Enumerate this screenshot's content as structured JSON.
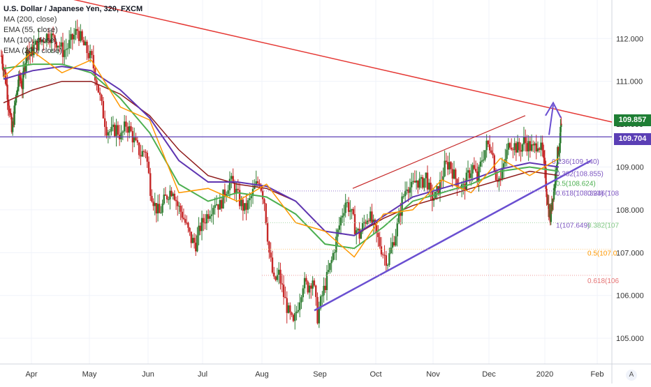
{
  "chart_data": {
    "type": "candlestick",
    "title": "U.S. Dollar / Japanese Yen, 320, FXCM",
    "indicators": [
      {
        "name": "MA (200, close)",
        "color": "#7b1fa2"
      },
      {
        "name": "EMA (55, close)",
        "color": "#4caf50"
      },
      {
        "name": "MA (100, close)",
        "color": "#5e35b1"
      },
      {
        "name": "EMA (200, close)",
        "color": "#8e1a1a"
      }
    ],
    "legend_rows": [
      "MA (200, close)",
      "EMA (55, close)",
      "MA (100, close)",
      "EMA (200, close)"
    ],
    "x_ticks": [
      "Apr",
      "May",
      "Jun",
      "Jul",
      "Aug",
      "Sep",
      "Oct",
      "Nov",
      "Dec",
      "2020",
      "Feb"
    ],
    "y_ticks": [
      "112.000",
      "111.000",
      "110.000",
      "109.000",
      "108.000",
      "107.000",
      "106.000",
      "105.000"
    ],
    "ylim": [
      104.4,
      112.9
    ],
    "current_price": "109.857",
    "horizontal_level": "109.704",
    "fib_labels": [
      {
        "text": "0.236(109.140)",
        "price": 109.14,
        "color": "#7e57c2"
      },
      {
        "text": "0.382(108.855)",
        "price": 108.855,
        "color": "#7e57c2"
      },
      {
        "text": "0.5(108.624)",
        "price": 108.624,
        "color": "#4caf50"
      },
      {
        "text": "0.618(108.394)",
        "price": 108.394,
        "color": "#7e57c2"
      },
      {
        "text": "1(107.649)",
        "price": 107.649,
        "color": "#7e57c2"
      },
      {
        "text": "0.236(108",
        "price": 108.4,
        "color": "#7e57c2"
      },
      {
        "text": "0.382(107",
        "price": 107.65,
        "color": "#81c784"
      },
      {
        "text": "0.5(107.0",
        "price": 107.0,
        "color": "#ff9800"
      },
      {
        "text": "0.618(106",
        "price": 106.35,
        "color": "#e57373"
      }
    ],
    "price_series": [
      {
        "month": "Mar",
        "values": [
          111.6,
          111.3,
          110.9,
          110.4,
          109.8,
          110.3,
          110.8,
          111.1,
          110.9,
          111.4,
          111.8,
          111.6
        ]
      },
      {
        "month": "Apr",
        "values": [
          111.8,
          111.9,
          112.0,
          112.1,
          112.0,
          111.9,
          111.7,
          111.8,
          112.0,
          112.2,
          111.9,
          111.7
        ]
      },
      {
        "month": "May",
        "values": [
          111.5,
          111.0,
          110.4,
          109.9,
          109.8,
          109.9,
          109.7,
          110.0,
          109.8,
          109.5,
          109.3,
          109.4
        ]
      },
      {
        "month": "Jun",
        "values": [
          108.5,
          108.1,
          107.9,
          108.2,
          108.4,
          108.5,
          108.1,
          107.9,
          107.6,
          107.3,
          107.2,
          107.6
        ]
      },
      {
        "month": "Jul",
        "values": [
          107.8,
          108.0,
          108.2,
          108.1,
          108.4,
          108.7,
          108.5,
          108.2,
          108.0,
          108.2,
          108.5,
          108.7
        ]
      },
      {
        "month": "Aug",
        "values": [
          108.2,
          107.0,
          106.3,
          106.5,
          106.0,
          105.6,
          105.3,
          105.8,
          106.3,
          106.2,
          106.4,
          105.5
        ]
      },
      {
        "month": "Sep",
        "values": [
          106.0,
          106.4,
          106.8,
          107.3,
          107.8,
          108.2,
          108.0,
          107.6,
          107.4,
          107.7,
          107.9,
          107.6
        ]
      },
      {
        "month": "Oct",
        "values": [
          107.3,
          107.0,
          106.8,
          107.2,
          107.6,
          108.2,
          108.6,
          108.5,
          108.7,
          108.6,
          108.8,
          108.3
        ]
      },
      {
        "month": "Nov",
        "values": [
          108.3,
          108.6,
          109.0,
          109.1,
          108.8,
          108.6,
          108.5,
          108.8,
          109.0,
          108.7,
          109.2,
          109.5
        ]
      },
      {
        "month": "Dec",
        "values": [
          109.5,
          108.8,
          108.7,
          109.2,
          109.6,
          109.5,
          109.4,
          109.6,
          109.5,
          109.4,
          109.6,
          109.3
        ]
      },
      {
        "month": "Jan",
        "values": [
          108.6,
          108.1,
          107.8,
          108.3,
          108.6,
          109.2,
          109.5,
          109.9
        ]
      }
    ],
    "moving_averages": {
      "ema55": [
        111.3,
        111.4,
        111.4,
        111.2,
        110.6,
        109.8,
        108.6,
        108.2,
        108.4,
        108.3,
        107.9,
        107.2,
        107.1,
        107.6,
        108.2,
        108.4,
        108.6,
        108.9,
        109.0,
        108.9
      ],
      "ema200": [
        110.5,
        110.8,
        111.0,
        111.0,
        110.7,
        110.2,
        109.4,
        108.8,
        108.6,
        108.5,
        108.2,
        107.5,
        107.4,
        107.8,
        108.1,
        108.3,
        108.5,
        108.7,
        108.9,
        108.8
      ]
    }
  }
}
